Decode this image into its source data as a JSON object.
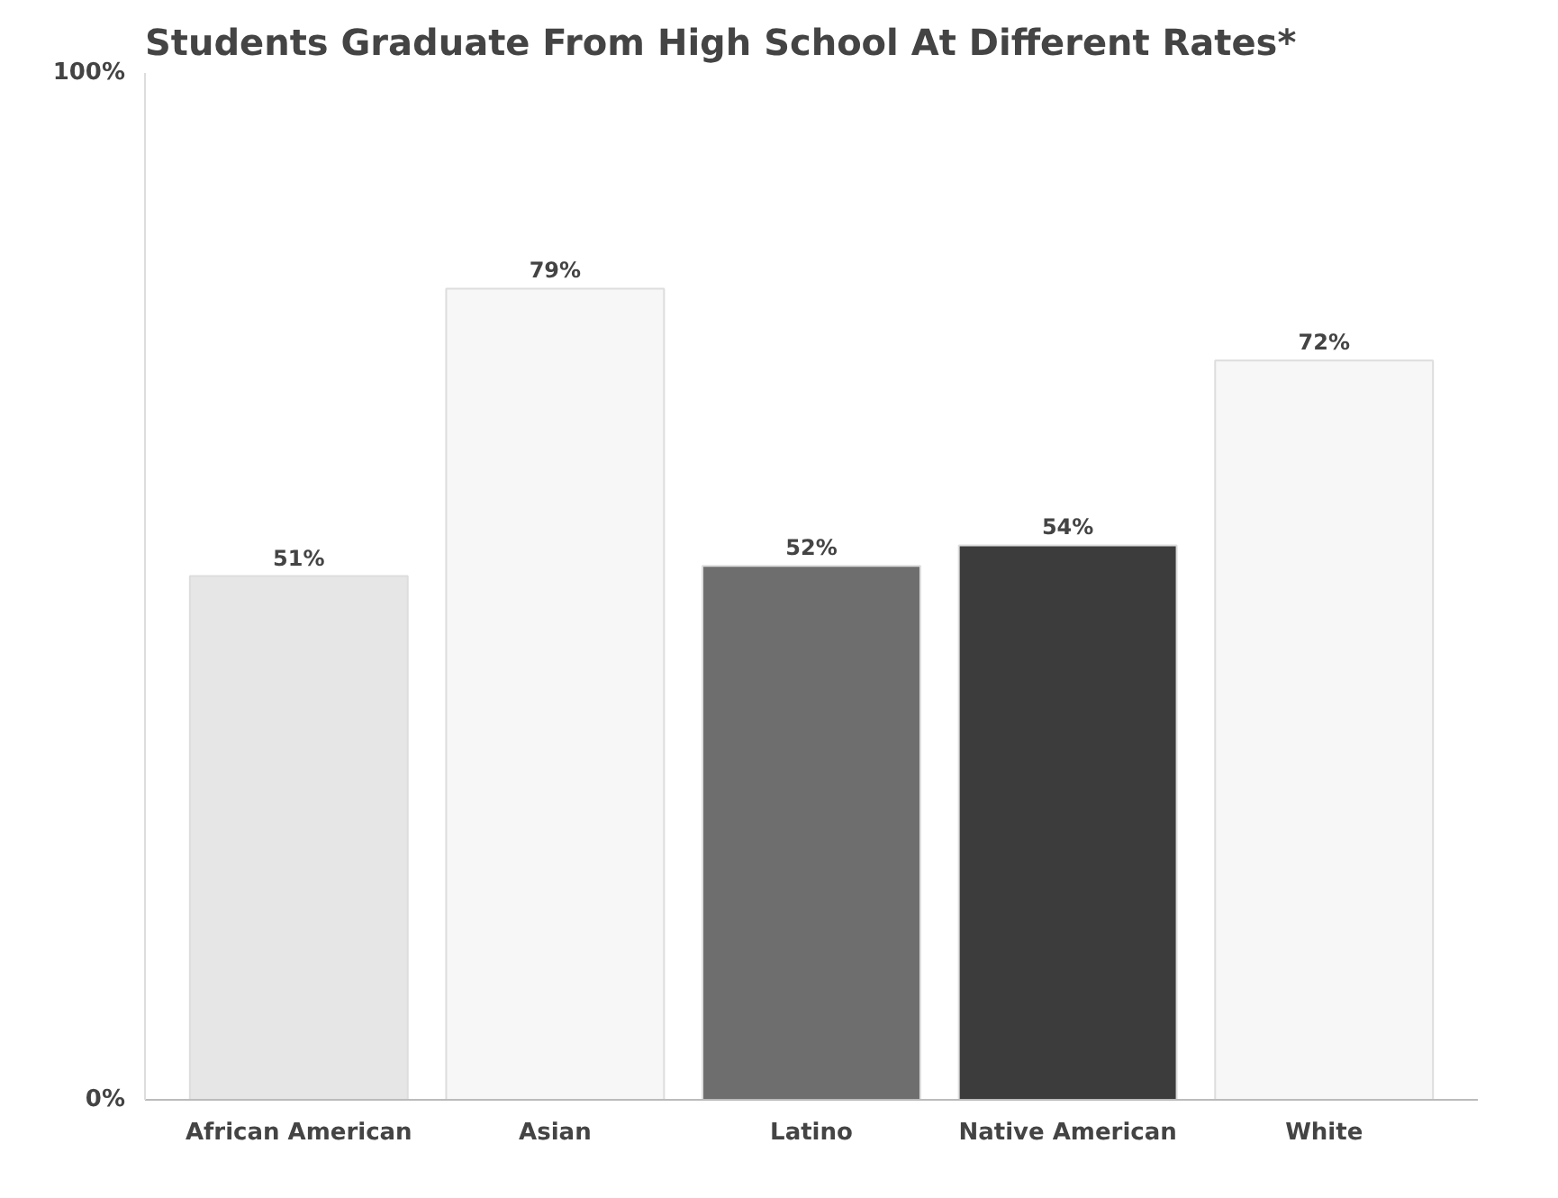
{
  "chart_data": {
    "type": "bar",
    "title": "Students Graduate From High School At Different Rates*",
    "categories": [
      "African American",
      "Asian",
      "Latino",
      "Native American",
      "White"
    ],
    "values": [
      51,
      79,
      52,
      54,
      72
    ],
    "colors": [
      "#e6e6e6",
      "#f7f7f7",
      "#6e6e6e",
      "#3c3c3c",
      "#f7f7f7"
    ],
    "value_labels": [
      "51%",
      "79%",
      "52%",
      "54%",
      "72%"
    ],
    "ylim": [
      0,
      100
    ],
    "yticks": [
      {
        "value": 0,
        "label": "0%"
      },
      {
        "value": 100,
        "label": "100%"
      }
    ]
  }
}
